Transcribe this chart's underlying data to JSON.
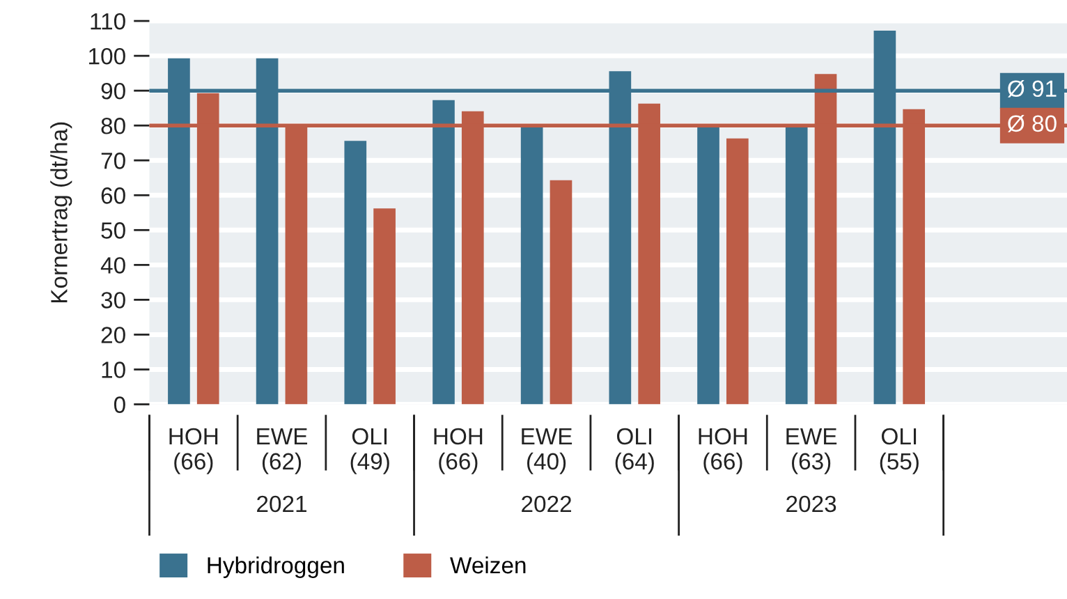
{
  "chart_data": {
    "type": "bar",
    "ylabel": "Kornertrag (dt/ha)",
    "categories": [
      "HOH\n(66)",
      "EWE\n(62)",
      "OLI\n(49)",
      "HOH\n(66)",
      "EWE\n(40)",
      "OLI\n(64)",
      "HOH\n(66)",
      "EWE\n(63)",
      "OLI\n(55)"
    ],
    "series": [
      {
        "name": "Hybridroggen",
        "color": "#3a728f",
        "values": [
          99.3,
          99.3,
          75.6,
          87.3,
          80,
          95.6,
          80,
          80,
          107.2
        ]
      },
      {
        "name": "Weizen",
        "color": "#bd5d47",
        "values": [
          89.3,
          80.3,
          56.2,
          84.1,
          64.3,
          86.3,
          76.3,
          94.8,
          84.7
        ]
      }
    ],
    "annotations": [
      "2021",
      "2022",
      "2023"
    ],
    "ref_lines": [
      {
        "axis": "y",
        "value": 90,
        "label": "Ø 91",
        "color": "#3a728f"
      },
      {
        "axis": "y",
        "value": 80,
        "label": "Ø 80",
        "color": "#bd5d47"
      }
    ],
    "ylim": [
      0,
      110
    ],
    "yticks": [
      0,
      10,
      20,
      30,
      40,
      50,
      60,
      70,
      80,
      90,
      100,
      110
    ],
    "grid": "y",
    "legend": "bottom left"
  }
}
